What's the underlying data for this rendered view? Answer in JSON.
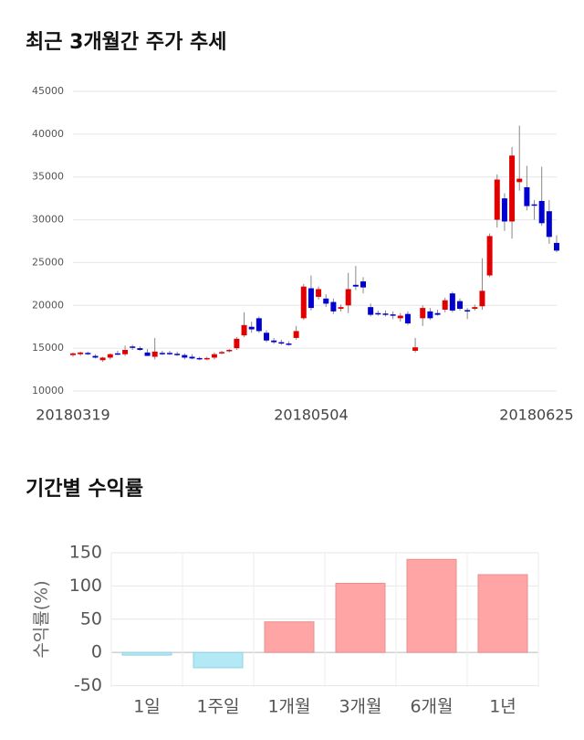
{
  "chart_data": [
    {
      "type": "candlestick",
      "title": "최근 3개월간 주가 추세",
      "categories": [
        "20180319",
        null,
        null,
        null,
        null,
        null,
        null,
        null,
        null,
        null,
        null,
        null,
        null,
        null,
        null,
        null,
        null,
        null,
        null,
        null,
        null,
        null,
        null,
        null,
        null,
        null,
        null,
        null,
        null,
        null,
        null,
        null,
        "20180504",
        null,
        null,
        null,
        null,
        null,
        null,
        null,
        null,
        null,
        null,
        null,
        null,
        null,
        null,
        null,
        null,
        null,
        null,
        null,
        null,
        null,
        null,
        null,
        null,
        null,
        null,
        null,
        null,
        null,
        null,
        null,
        null,
        "20180625"
      ],
      "open": [
        14200,
        14300,
        14450,
        14100,
        13600,
        13900,
        14400,
        14300,
        15200,
        15000,
        14500,
        14000,
        14450,
        14450,
        14350,
        14200,
        14000,
        13850,
        13800,
        13900,
        14450,
        14650,
        15000,
        16500,
        17500,
        18500,
        16800,
        15900,
        15700,
        15550,
        16200,
        18500,
        22000,
        21000,
        20800,
        20400,
        19600,
        20000,
        22400,
        22800,
        19800,
        19100,
        19050,
        18950,
        18500,
        19000,
        14700,
        18500,
        19300,
        19100,
        19500,
        21400,
        20500,
        19450,
        19600,
        19900,
        23500,
        30000,
        32500,
        29800,
        34400,
        33800,
        31800,
        32200,
        31000,
        27300
      ],
      "high": [
        14500,
        14600,
        14600,
        14300,
        14000,
        14400,
        14700,
        15300,
        15400,
        15200,
        14900,
        16200,
        14700,
        14700,
        14600,
        14400,
        14300,
        14000,
        14000,
        14500,
        14700,
        14900,
        16300,
        19200,
        18100,
        18700,
        17100,
        16200,
        16000,
        15800,
        17600,
        22500,
        23500,
        22200,
        21300,
        20800,
        20100,
        23800,
        24600,
        23300,
        20200,
        19400,
        19400,
        19300,
        19100,
        19300,
        16200,
        20000,
        19700,
        19500,
        20900,
        21600,
        20800,
        19700,
        20100,
        25500,
        28400,
        35300,
        33100,
        38500,
        41000,
        36300,
        32300,
        36200,
        32300,
        28200
      ],
      "low": [
        14000,
        14100,
        14200,
        13800,
        13400,
        13700,
        14200,
        14100,
        14800,
        14700,
        14100,
        13700,
        14200,
        14200,
        14100,
        13700,
        13700,
        13600,
        13600,
        13700,
        14300,
        14500,
        14800,
        16300,
        16800,
        16800,
        15700,
        15500,
        15400,
        15300,
        16000,
        18300,
        19400,
        20700,
        19800,
        19000,
        19300,
        19100,
        21800,
        21400,
        18700,
        18800,
        18700,
        18400,
        18100,
        17700,
        14500,
        17600,
        18300,
        18800,
        19200,
        19200,
        19400,
        18400,
        19400,
        19500,
        23300,
        29100,
        28700,
        27800,
        33400,
        31100,
        30000,
        29300,
        27200,
        26200
      ],
      "close": [
        14400,
        14500,
        14350,
        13900,
        13900,
        14300,
        14300,
        14800,
        15050,
        14800,
        14100,
        14600,
        14400,
        14400,
        14250,
        13900,
        13800,
        13800,
        13850,
        14300,
        14550,
        14800,
        16100,
        17700,
        17200,
        17000,
        15900,
        15700,
        15600,
        15450,
        17000,
        22200,
        19700,
        21900,
        20200,
        19300,
        19800,
        21900,
        22200,
        22100,
        18900,
        19000,
        18900,
        18800,
        18800,
        17900,
        15100,
        19700,
        18500,
        18900,
        20600,
        19400,
        19600,
        19350,
        19800,
        21700,
        28100,
        34700,
        29800,
        37500,
        34800,
        31600,
        31700,
        29600,
        28000,
        26400
      ],
      "up_color": "#e00000",
      "down_color": "#0000d0",
      "ylim": [
        10000,
        45000
      ],
      "yticks": [
        10000,
        15000,
        20000,
        25000,
        30000,
        35000,
        40000,
        45000
      ],
      "grid": true
    },
    {
      "type": "bar",
      "title": "기간별 수익률",
      "ylabel": "수익률(%)",
      "categories": [
        "1일",
        "1주일",
        "1개월",
        "3개월",
        "6개월",
        "1년"
      ],
      "values": [
        -4,
        -23,
        46,
        104,
        140,
        117
      ],
      "positive_color": "#ffa5a5",
      "negative_color": "#b3e9f4",
      "ylim": [
        -52,
        150
      ],
      "yticks": [
        -50,
        0,
        50,
        100,
        150
      ],
      "grid": true
    }
  ]
}
